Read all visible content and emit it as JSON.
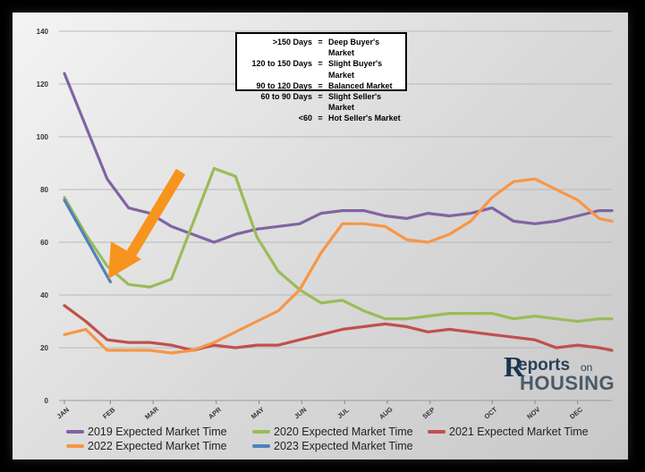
{
  "chart_data": {
    "type": "line",
    "title": "",
    "xlabel": "",
    "ylabel": "",
    "ylim": [
      0,
      140
    ],
    "y_ticks": [
      0,
      20,
      40,
      60,
      80,
      100,
      120,
      140
    ],
    "x_tick_labels": [
      "JAN",
      "FEB",
      "MAR",
      "APR",
      "MAY",
      "JUN",
      "JUL",
      "AUG",
      "SEP",
      "OCT",
      "NOV",
      "DEC"
    ],
    "x_tick_positions": [
      0,
      2.15,
      4.15,
      7.1,
      9.1,
      11.1,
      13.1,
      15.1,
      17.1,
      20,
      22,
      24
    ],
    "x_range": [
      0,
      25.6
    ],
    "grid": true,
    "legend_position": "bottom",
    "series": [
      {
        "name": "2019 Expected Market Time",
        "color": "#8064a2",
        "x": [
          0,
          1,
          2,
          3,
          4,
          5,
          6,
          7,
          8,
          9,
          10,
          11,
          12,
          13,
          14,
          15,
          16,
          17,
          18,
          19,
          20,
          21,
          22,
          23,
          24,
          25,
          25.6
        ],
        "y": [
          124,
          104,
          84,
          73,
          71,
          66,
          63,
          60,
          63,
          65,
          66,
          67,
          71,
          72,
          72,
          70,
          69,
          71,
          70,
          71,
          73,
          68,
          67,
          68,
          70,
          72,
          72
        ]
      },
      {
        "name": "2020 Expected Market Time",
        "color": "#9bbb59",
        "x": [
          0,
          1,
          2,
          3,
          4,
          5,
          6,
          7,
          8,
          9,
          10,
          11,
          12,
          13,
          14,
          15,
          16,
          17,
          18,
          19,
          20,
          21,
          22,
          23,
          24,
          25,
          25.6
        ],
        "y": [
          77,
          63,
          51,
          44,
          43,
          46,
          67,
          88,
          85,
          62,
          49,
          42,
          37,
          38,
          34,
          31,
          31,
          32,
          33,
          33,
          33,
          31,
          32,
          31,
          30,
          31,
          31
        ]
      },
      {
        "name": "2021 Expected Market Time",
        "color": "#c0504d",
        "x": [
          0,
          1,
          2,
          3,
          4,
          5,
          6,
          7,
          8,
          9,
          10,
          11,
          12,
          13,
          14,
          15,
          16,
          17,
          18,
          19,
          20,
          21,
          22,
          23,
          24,
          25,
          25.6
        ],
        "y": [
          36,
          30,
          23,
          22,
          22,
          21,
          19,
          21,
          20,
          21,
          21,
          23,
          25,
          27,
          28,
          29,
          28,
          26,
          27,
          26,
          25,
          24,
          23,
          20,
          21,
          20,
          19
        ]
      },
      {
        "name": "2022 Expected Market Time",
        "color": "#f79646",
        "x": [
          0,
          1,
          2,
          3,
          4,
          5,
          6,
          7,
          8,
          9,
          10,
          11,
          12,
          13,
          14,
          15,
          16,
          17,
          18,
          19,
          20,
          21,
          22,
          23,
          24,
          25,
          25.6
        ],
        "y": [
          25,
          27,
          19,
          19,
          19,
          18,
          19,
          22,
          26,
          30,
          34,
          42,
          56,
          67,
          67,
          66,
          61,
          60,
          63,
          68,
          77,
          83,
          84,
          80,
          76,
          69,
          68
        ]
      },
      {
        "name": "2023 Expected Market Time",
        "color": "#4f81bd",
        "x": [
          0,
          2.15
        ],
        "y": [
          76,
          45
        ]
      }
    ],
    "key_box": [
      {
        "range": ">150 Days",
        "label": "Deep Buyer's Market"
      },
      {
        "range": "120 to 150 Days",
        "label": "Slight Buyer's Market"
      },
      {
        "range": "90 to 120 Days",
        "label": "Balanced Market"
      },
      {
        "range": "60 to 90 Days",
        "label": "Slight Seller's Market"
      },
      {
        "range": "<60",
        "label": "Hot Seller's Market"
      }
    ],
    "arrow_color": "#f7941d"
  },
  "logo": {
    "r": "R",
    "reports": "eports",
    "on": "on",
    "housing": "HOUSING"
  }
}
